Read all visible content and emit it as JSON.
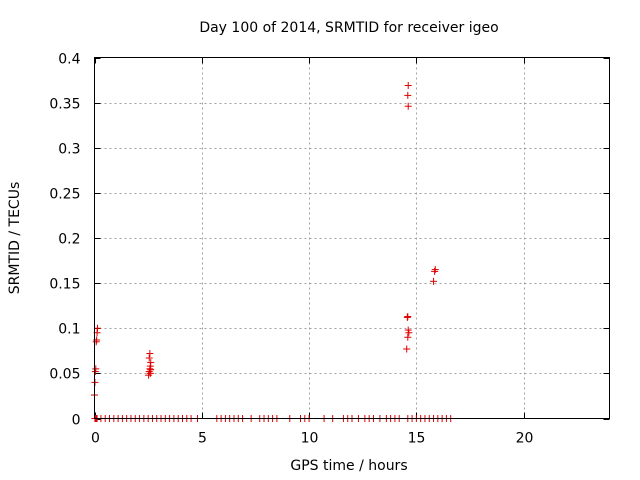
{
  "chart_data": {
    "type": "scatter",
    "title": "Day 100 of 2014, SRMTID for receiver igeo",
    "xlabel": "GPS time / hours",
    "ylabel": "SRMTID / TECUs",
    "xlim": [
      0,
      24
    ],
    "ylim": [
      0,
      0.4
    ],
    "grid": true,
    "marker": "plus",
    "color": "#e00000",
    "x_ticks": [
      0,
      5,
      10,
      15,
      20
    ],
    "x_tick_labels": [
      "0",
      "5",
      "10",
      "15",
      "20"
    ],
    "y_ticks": [
      0,
      0.05,
      0.1,
      0.15,
      0.2,
      0.25,
      0.3,
      0.35,
      0.4
    ],
    "y_tick_labels": [
      "0",
      "0.05",
      "0.1",
      "0.15",
      "0.2",
      "0.25",
      "0.3",
      "0.35",
      "0.4"
    ],
    "series": [
      {
        "x": [
          0.0,
          0.02,
          0.04,
          0.06,
          0.08,
          0.1,
          0.12,
          0.14,
          0.02,
          0.05,
          0.08,
          0.1,
          0.12,
          2.52,
          2.55,
          2.58,
          2.6,
          2.62,
          2.55,
          2.58,
          2.6,
          2.62,
          14.55,
          14.6,
          14.65,
          14.62,
          14.58,
          14.6,
          14.62,
          14.6,
          14.62,
          14.6,
          15.8,
          15.85,
          15.88,
          0.3,
          0.5,
          0.7,
          0.9,
          1.1,
          1.3,
          1.5,
          1.7,
          1.9,
          2.1,
          2.3,
          2.5,
          2.7,
          2.9,
          3.1,
          3.3,
          3.5,
          3.7,
          3.9,
          4.1,
          4.3,
          4.5,
          4.8,
          5.7,
          5.9,
          6.1,
          6.3,
          6.5,
          6.7,
          6.9,
          7.3,
          7.7,
          7.9,
          8.1,
          8.3,
          8.5,
          9.1,
          9.6,
          9.8,
          10.0,
          10.7,
          11.1,
          11.6,
          11.8,
          12.0,
          12.3,
          12.6,
          12.8,
          13.0,
          13.3,
          13.6,
          13.8,
          14.0,
          14.2,
          14.8,
          15.0,
          15.2,
          15.4,
          15.6,
          15.8,
          16.0,
          16.2,
          16.4,
          16.6
        ],
        "y": [
          0.026,
          0.04,
          0.052,
          0.055,
          0.085,
          0.087,
          0.095,
          0.1,
          0.0,
          0.0,
          0.0,
          0.0,
          0.0,
          0.048,
          0.052,
          0.055,
          0.058,
          0.062,
          0.067,
          0.072,
          0.05,
          0.054,
          0.077,
          0.09,
          0.095,
          0.098,
          0.112,
          0.113,
          0.346,
          0.358,
          0.369,
          0.0,
          0.152,
          0.163,
          0.165,
          0.0,
          0.0,
          0.0,
          0.0,
          0.0,
          0.0,
          0.0,
          0.0,
          0.0,
          0.0,
          0.0,
          0.0,
          0.0,
          0.0,
          0.0,
          0.0,
          0.0,
          0.0,
          0.0,
          0.0,
          0.0,
          0.0,
          0.0,
          0.0,
          0.0,
          0.0,
          0.0,
          0.0,
          0.0,
          0.0,
          0.0,
          0.0,
          0.0,
          0.0,
          0.0,
          0.0,
          0.0,
          0.0,
          0.0,
          0.0,
          0.0,
          0.0,
          0.0,
          0.0,
          0.0,
          0.0,
          0.0,
          0.0,
          0.0,
          0.0,
          0.0,
          0.0,
          0.0,
          0.0,
          0.0,
          0.0,
          0.0,
          0.0,
          0.0,
          0.0,
          0.0,
          0.0,
          0.0,
          0.0
        ]
      }
    ]
  }
}
